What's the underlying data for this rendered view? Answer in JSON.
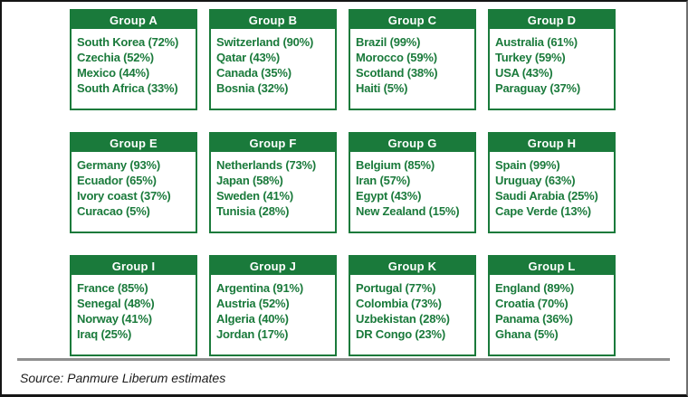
{
  "colors": {
    "green": "#1a7a3b",
    "header_text": "#ffffff",
    "divider": "#8f8f8f",
    "source_text": "#1c1c1c",
    "frame_border": "#151515"
  },
  "source_note": "Source: Panmure Liberum estimates",
  "chart_data": {
    "type": "table",
    "title": "",
    "values_unit": "%",
    "layout": "4 columns x 3 rows of group boxes",
    "groups": [
      {
        "name": "Group A",
        "entries": [
          {
            "label": "South Korea",
            "value": 72,
            "text": "South Korea (72%)"
          },
          {
            "label": "Czechia",
            "value": 52,
            "text": "Czechia (52%)"
          },
          {
            "label": "Mexico",
            "value": 44,
            "text": "Mexico (44%)"
          },
          {
            "label": "South Africa",
            "value": 33,
            "text": "South Africa (33%)"
          }
        ]
      },
      {
        "name": "Group B",
        "entries": [
          {
            "label": "Switzerland",
            "value": 90,
            "text": "Switzerland (90%)"
          },
          {
            "label": "Qatar",
            "value": 43,
            "text": "Qatar (43%)"
          },
          {
            "label": "Canada",
            "value": 35,
            "text": "Canada (35%)"
          },
          {
            "label": "Bosnia",
            "value": 32,
            "text": "Bosnia (32%)"
          }
        ]
      },
      {
        "name": "Group C",
        "entries": [
          {
            "label": "Brazil",
            "value": 99,
            "text": "Brazil (99%)"
          },
          {
            "label": "Morocco",
            "value": 59,
            "text": "Morocco (59%)"
          },
          {
            "label": "Scotland",
            "value": 38,
            "text": "Scotland (38%)"
          },
          {
            "label": "Haiti",
            "value": 5,
            "text": "Haiti (5%)"
          }
        ]
      },
      {
        "name": "Group D",
        "entries": [
          {
            "label": "Australia",
            "value": 61,
            "text": "Australia (61%)"
          },
          {
            "label": "Turkey",
            "value": 59,
            "text": "Turkey (59%)"
          },
          {
            "label": "USA",
            "value": 43,
            "text": "USA (43%)"
          },
          {
            "label": "Paraguay",
            "value": 37,
            "text": "Paraguay (37%)"
          }
        ]
      },
      {
        "name": "Group E",
        "entries": [
          {
            "label": "Germany",
            "value": 93,
            "text": "Germany (93%)"
          },
          {
            "label": "Ecuador",
            "value": 65,
            "text": "Ecuador (65%)"
          },
          {
            "label": "Ivory coast",
            "value": 37,
            "text": "Ivory coast (37%)"
          },
          {
            "label": "Curacao",
            "value": 5,
            "text": "Curacao (5%)"
          }
        ]
      },
      {
        "name": "Group F",
        "entries": [
          {
            "label": "Netherlands",
            "value": 73,
            "text": "Netherlands (73%)"
          },
          {
            "label": "Japan",
            "value": 58,
            "text": "Japan (58%)"
          },
          {
            "label": "Sweden",
            "value": 41,
            "text": "Sweden (41%)"
          },
          {
            "label": "Tunisia",
            "value": 28,
            "text": "Tunisia (28%)"
          }
        ]
      },
      {
        "name": "Group G",
        "entries": [
          {
            "label": "Belgium",
            "value": 85,
            "text": "Belgium (85%)"
          },
          {
            "label": "Iran",
            "value": 57,
            "text": "Iran (57%)"
          },
          {
            "label": "Egypt",
            "value": 43,
            "text": "Egypt (43%)"
          },
          {
            "label": "New Zealand",
            "value": 15,
            "text": "New Zealand (15%)"
          }
        ]
      },
      {
        "name": "Group H",
        "entries": [
          {
            "label": "Spain",
            "value": 99,
            "text": "Spain (99%)"
          },
          {
            "label": "Uruguay",
            "value": 63,
            "text": "Uruguay (63%)"
          },
          {
            "label": "Saudi Arabia",
            "value": 25,
            "text": "Saudi Arabia (25%)"
          },
          {
            "label": "Cape Verde",
            "value": 13,
            "text": "Cape Verde (13%)"
          }
        ]
      },
      {
        "name": "Group I",
        "entries": [
          {
            "label": "France",
            "value": 85,
            "text": "France (85%)"
          },
          {
            "label": "Senegal",
            "value": 48,
            "text": "Senegal (48%)"
          },
          {
            "label": "Norway",
            "value": 41,
            "text": "Norway (41%)"
          },
          {
            "label": "Iraq",
            "value": 25,
            "text": "Iraq (25%)"
          }
        ]
      },
      {
        "name": "Group J",
        "entries": [
          {
            "label": "Argentina",
            "value": 91,
            "text": "Argentina (91%)"
          },
          {
            "label": "Austria",
            "value": 52,
            "text": "Austria (52%)"
          },
          {
            "label": "Algeria",
            "value": 40,
            "text": "Algeria (40%)"
          },
          {
            "label": "Jordan",
            "value": 17,
            "text": "Jordan (17%)"
          }
        ]
      },
      {
        "name": "Group K",
        "entries": [
          {
            "label": "Portugal",
            "value": 77,
            "text": "Portugal (77%)"
          },
          {
            "label": "Colombia",
            "value": 73,
            "text": "Colombia (73%)"
          },
          {
            "label": "Uzbekistan",
            "value": 28,
            "text": "Uzbekistan (28%)"
          },
          {
            "label": "DR Congo",
            "value": 23,
            "text": "DR Congo (23%)"
          }
        ]
      },
      {
        "name": "Group L",
        "entries": [
          {
            "label": "England",
            "value": 89,
            "text": "England (89%)"
          },
          {
            "label": "Croatia",
            "value": 70,
            "text": "Croatia (70%)"
          },
          {
            "label": "Panama",
            "value": 36,
            "text": "Panama (36%)"
          },
          {
            "label": "Ghana",
            "value": 5,
            "text": "Ghana (5%)"
          }
        ]
      }
    ],
    "source": "Source: Panmure Liberum estimates"
  }
}
